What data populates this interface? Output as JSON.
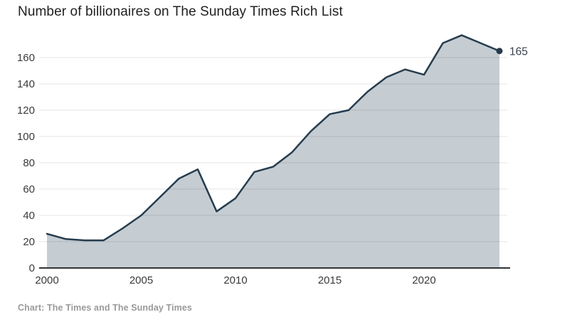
{
  "title": "Number of billionaires on The Sunday Times Rich List",
  "source": "Chart: The Times and The Sunday Times",
  "colors": {
    "line": "#263c4d",
    "fill": "#c5cdd3",
    "grid": "rgba(0,0,0,0.10)",
    "axis": "#333333",
    "tick_text": "#3a3a3a",
    "title_text": "#212121",
    "source_text": "#9a9a9a",
    "end_label_text": "#39434c"
  },
  "chart_data": {
    "type": "area",
    "title": "Number of billionaires on The Sunday Times Rich List",
    "x": [
      2000,
      2001,
      2002,
      2003,
      2004,
      2005,
      2006,
      2007,
      2008,
      2009,
      2010,
      2011,
      2012,
      2013,
      2014,
      2015,
      2016,
      2017,
      2018,
      2019,
      2020,
      2021,
      2022,
      2023,
      2024
    ],
    "series": [
      {
        "name": "Billionaires",
        "values": [
          26,
          22,
          21,
          21,
          30,
          40,
          54,
          68,
          75,
          43,
          53,
          73,
          77,
          88,
          104,
          117,
          120,
          134,
          145,
          151,
          147,
          171,
          177,
          171,
          165
        ]
      }
    ],
    "xlabel": "",
    "ylabel": "",
    "ylim": [
      0,
      180
    ],
    "xticks": [
      2000,
      2005,
      2010,
      2015,
      2020
    ],
    "yticks": [
      0,
      20,
      40,
      60,
      80,
      100,
      120,
      140,
      160
    ],
    "grid": "horizontal",
    "legend": "none",
    "end_label": "165",
    "source": "Chart: The Times and The Sunday Times"
  }
}
